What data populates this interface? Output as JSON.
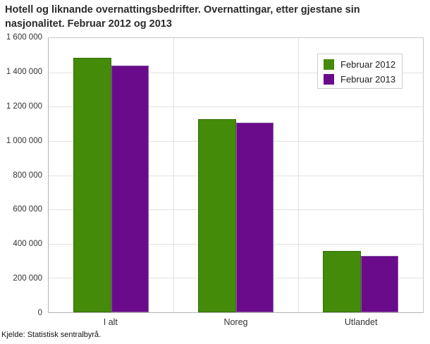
{
  "title": {
    "line1": "Hotell og liknande overnattingsbedrifter. Overnattingar, etter gjestane sin",
    "line2": "nasjonalitet. Februar 2012 og 2013"
  },
  "source": "Kjelde: Statistisk sentralbyrå.",
  "colors": {
    "grid": "#e2e2e2",
    "plot_border": "#c9c9c9",
    "axis": "#b2b2b2",
    "tick_text": "#333333",
    "title_text": "#2b2b2b",
    "legend_border": "#cdcdcd",
    "series_green": "#458b0a",
    "series_purple": "#6a0b8c"
  },
  "chart_data": {
    "type": "bar",
    "title": "Hotell og liknande overnattingsbedrifter. Overnattingar, etter gjestane sin nasjonalitet. Februar 2012 og 2013",
    "categories": [
      "I alt",
      "Noreg",
      "Utlandet"
    ],
    "series": [
      {
        "name": "Februar 2012",
        "color": "#458b0a",
        "border_color": "#35700a",
        "values": [
          1483000,
          1127000,
          356000
        ]
      },
      {
        "name": "Februar 2013",
        "color": "#6a0b8c",
        "border_color": "#8a56a2",
        "values": [
          1438000,
          1108000,
          330000
        ]
      }
    ],
    "xlabel": "",
    "ylabel": "",
    "ylim": [
      0,
      1600000
    ],
    "ytick_step": 200000,
    "yticks": [
      {
        "value": 0,
        "label": "0"
      },
      {
        "value": 200000,
        "label": "200 000"
      },
      {
        "value": 400000,
        "label": "400 000"
      },
      {
        "value": 600000,
        "label": "600 000"
      },
      {
        "value": 800000,
        "label": "800 000"
      },
      {
        "value": 1000000,
        "label": "1 000 000"
      },
      {
        "value": 1200000,
        "label": "1 200 000"
      },
      {
        "value": 1400000,
        "label": "1 400 000"
      },
      {
        "value": 1600000,
        "label": "1 600 000"
      }
    ],
    "grid": true,
    "legend_position": "top-right",
    "source": "Kjelde: Statistisk sentralbyrå."
  }
}
